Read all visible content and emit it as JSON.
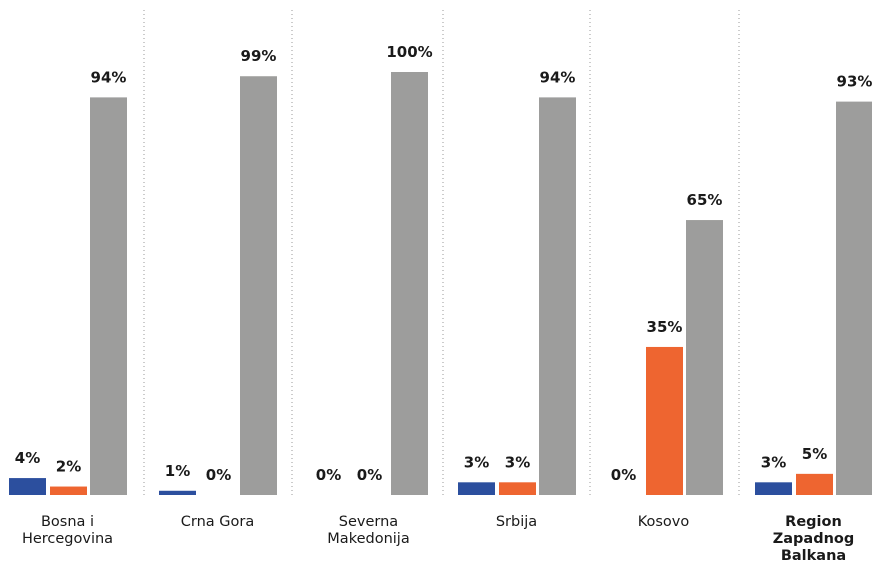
{
  "chart_data": {
    "type": "bar",
    "categories": [
      [
        "Bosna i",
        "Hercegovina"
      ],
      [
        "Crna Gora"
      ],
      [
        "Severna",
        "Makedonija"
      ],
      [
        "Srbija"
      ],
      [
        "Kosovo"
      ],
      [
        "Region",
        "Zapadnog",
        "Balkana"
      ]
    ],
    "highlight_category_index": 5,
    "series": [
      {
        "values": [
          4,
          1,
          0,
          3,
          0,
          3
        ],
        "color": "#2c4f9e"
      },
      {
        "values": [
          2,
          0,
          0,
          3,
          35,
          5
        ],
        "color": "#ee6530"
      },
      {
        "values": [
          94,
          99,
          100,
          94,
          65,
          93
        ],
        "color": "#9d9d9c"
      }
    ],
    "labels": [
      [
        "4%",
        "2%",
        "94%"
      ],
      [
        "1%",
        "0%",
        "99%"
      ],
      [
        "0%",
        "0%",
        "100%"
      ],
      [
        "3%",
        "3%",
        "94%"
      ],
      [
        "0%",
        "35%",
        "65%"
      ],
      [
        "3%",
        "5%",
        "93%"
      ]
    ],
    "ylim": [
      0,
      100
    ],
    "grid": false,
    "legend": "none"
  }
}
